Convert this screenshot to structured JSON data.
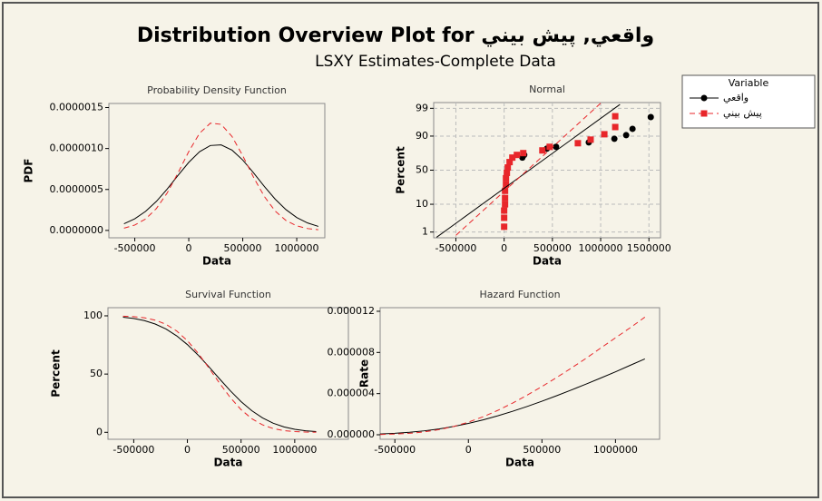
{
  "title": "Distribution Overview Plot for واقعي, پيش بيني",
  "subtitle": "LSXY Estimates-Complete Data",
  "legend": {
    "title": "Variable",
    "position": "top-right"
  },
  "chart_data": [
    {
      "type": "line",
      "title": "Probability Density Function",
      "x_label": "Data",
      "y_label": "PDF",
      "x": [
        -600000,
        -500000,
        -400000,
        -300000,
        -200000,
        -100000,
        0,
        100000,
        200000,
        300000,
        400000,
        500000,
        600000,
        700000,
        800000,
        900000,
        1000000,
        1100000,
        1200000
      ],
      "series": [
        {
          "color": "#000000",
          "line_style": "solid",
          "values": [
            8.1e-08,
            1.421e-07,
            2.322e-07,
            3.543e-07,
            5.044e-07,
            6.707e-07,
            8.308e-07,
            9.608e-07,
            1.0368e-06,
            1.044e-06,
            9.81e-07,
            8.598e-07,
            7.034e-07,
            5.37e-07,
            3.826e-07,
            2.543e-07,
            1.578e-07,
            9.11e-08,
            4.92e-08
          ]
        },
        {
          "color": "#e8262a",
          "line_style": "dashed",
          "values": [
            2.76e-08,
            6.57e-08,
            1.399e-07,
            2.672e-07,
            4.572e-07,
            7.008e-07,
            9.63e-07,
            1.1863e-06,
            1.3095e-06,
            1.2951e-06,
            1.1478e-06,
            9.118e-07,
            6.491e-07,
            4.141e-07,
            2.369e-07,
            1.214e-07,
            5.56e-08,
            2.29e-08,
            8.5e-09
          ]
        }
      ],
      "xlim": [
        -740000,
        1260000
      ],
      "xticks": [
        -500000,
        0,
        500000,
        1000000
      ],
      "ylim": [
        -9e-08,
        1.55e-06
      ],
      "yticks": [
        {
          "value": 0,
          "label": "0.0000000"
        },
        {
          "value": 5e-07,
          "label": "0.0000005"
        },
        {
          "value": 1e-06,
          "label": "0.0000010"
        },
        {
          "value": 1.5e-06,
          "label": "0.0000015"
        }
      ],
      "grid": false
    },
    {
      "type": "probability",
      "title": "Normal",
      "x_label": "Data",
      "y_label": "Percent",
      "yscale": "normal-probability",
      "series": [
        {
          "name": "واقعي",
          "color": "#000000",
          "mode": "markers",
          "marker": "circle",
          "line_style": "solid",
          "x": [
            1519000,
            1330000,
            1264000,
            1142000,
            877000,
            538000,
            443000,
            208000,
            189000
          ],
          "values": [
            97.7,
            94.0,
            90.6,
            88.1,
            85.2,
            81.0,
            79.1,
            71.7,
            68.2
          ]
        },
        {
          "name": "پيش بيني",
          "color": "#e8262a",
          "mode": "markers",
          "marker": "square",
          "line_style": "dashed",
          "x": [
            0,
            0,
            0,
            9400,
            9400,
            9400,
            18900,
            18900,
            28300,
            37700,
            56600,
            84900,
            132000,
            198000,
            396000,
            472000,
            764000,
            896000,
            1038000,
            1151000,
            1151000
          ],
          "values": [
            1.67,
            3.67,
            6.42,
            9.96,
            14.76,
            21.86,
            29.44,
            38.06,
            45.97,
            54.03,
            61.94,
            68.18,
            71.7,
            73.95,
            77.13,
            81.01,
            84.47,
            87.47,
            91.17,
            94.76,
            97.87
          ]
        },
        {
          "color": "#000000",
          "mode": "line",
          "line_style": "solid",
          "x": [
            -700000,
            1200000
          ],
          "values": [
            0.58,
            99.33
          ]
        },
        {
          "color": "#e8262a",
          "mode": "line",
          "line_style": "dashed",
          "x": [
            -500000,
            1000000
          ],
          "values": [
            0.71,
            99.41
          ]
        }
      ],
      "xlim": [
        -730000,
        1620000
      ],
      "xticks": [
        -500000,
        0,
        500000,
        1000000,
        1500000
      ],
      "ylim": [
        0.55,
        99.45
      ],
      "yticks": [
        1,
        10,
        50,
        90,
        99
      ],
      "grid": true
    },
    {
      "type": "line",
      "title": "Survival Function",
      "x_label": "Data",
      "y_label": "Percent",
      "x": [
        -600000,
        -500000,
        -400000,
        -300000,
        -200000,
        -100000,
        0,
        100000,
        200000,
        300000,
        400000,
        500000,
        600000,
        700000,
        800000,
        900000,
        1000000,
        1100000,
        1200000
      ],
      "series": [
        {
          "color": "#000000",
          "line_style": "solid",
          "values": [
            98.82,
            97.72,
            95.88,
            92.98,
            88.71,
            82.82,
            75.3,
            66.31,
            56.28,
            45.82,
            35.64,
            26.37,
            18.54,
            12.34,
            7.77,
            4.61,
            2.58,
            1.35,
            0.67
          ]
        },
        {
          "color": "#e8262a",
          "line_style": "dashed",
          "values": [
            99.73,
            99.29,
            98.3,
            96.31,
            92.74,
            86.99,
            78.67,
            67.87,
            55.25,
            42.11,
            29.81,
            19.46,
            11.66,
            6.39,
            3.19,
            1.44,
            0.59,
            0.22,
            0.07
          ]
        }
      ],
      "xlim": [
        -740000,
        1500000
      ],
      "xticks": [
        -500000,
        0,
        500000,
        1000000
      ],
      "ylim": [
        -6,
        107
      ],
      "yticks": [
        0,
        50,
        100
      ],
      "grid": false
    },
    {
      "type": "line",
      "title": "Hazard Function",
      "x_label": "Data",
      "y_label": "Rate",
      "x": [
        -600000,
        -500000,
        -400000,
        -300000,
        -200000,
        -100000,
        0,
        100000,
        200000,
        300000,
        400000,
        500000,
        600000,
        700000,
        800000,
        900000,
        1000000,
        1100000,
        1200000
      ],
      "series": [
        {
          "color": "#000000",
          "line_style": "solid",
          "values": [
            8.2e-08,
            1.454e-07,
            2.422e-07,
            3.811e-07,
            5.686e-07,
            8.098e-07,
            1.1033e-06,
            1.449e-06,
            1.8422e-06,
            2.2785e-06,
            2.7525e-06,
            3.2605e-06,
            3.794e-06,
            4.3517e-06,
            4.924e-06,
            5.516e-06,
            6.116e-06,
            6.748e-06,
            7.37e-06
          ]
        },
        {
          "color": "#e8262a",
          "line_style": "dashed",
          "values": [
            2.77e-08,
            6.62e-08,
            1.423e-07,
            2.774e-07,
            4.93e-07,
            8.056e-07,
            1.2241e-06,
            1.7479e-06,
            2.3701e-06,
            3.0755e-06,
            3.8504e-06,
            4.6855e-06,
            5.567e-06,
            6.48e-06,
            7.426e-06,
            8.43e-06,
            9.42e-06,
            1.04e-05,
            1.143e-05
          ]
        }
      ],
      "xlim": [
        -600000,
        1300000
      ],
      "xticks": [
        -500000,
        0,
        500000,
        1000000
      ],
      "ylim": [
        -4.4e-07,
        1.235e-05
      ],
      "yticks": [
        {
          "value": 0,
          "label": "0.000000"
        },
        {
          "value": 4e-06,
          "label": "0.000004"
        },
        {
          "value": 8e-06,
          "label": "0.000008"
        },
        {
          "value": 1.2e-05,
          "label": "0.000012"
        }
      ],
      "grid": false
    }
  ]
}
